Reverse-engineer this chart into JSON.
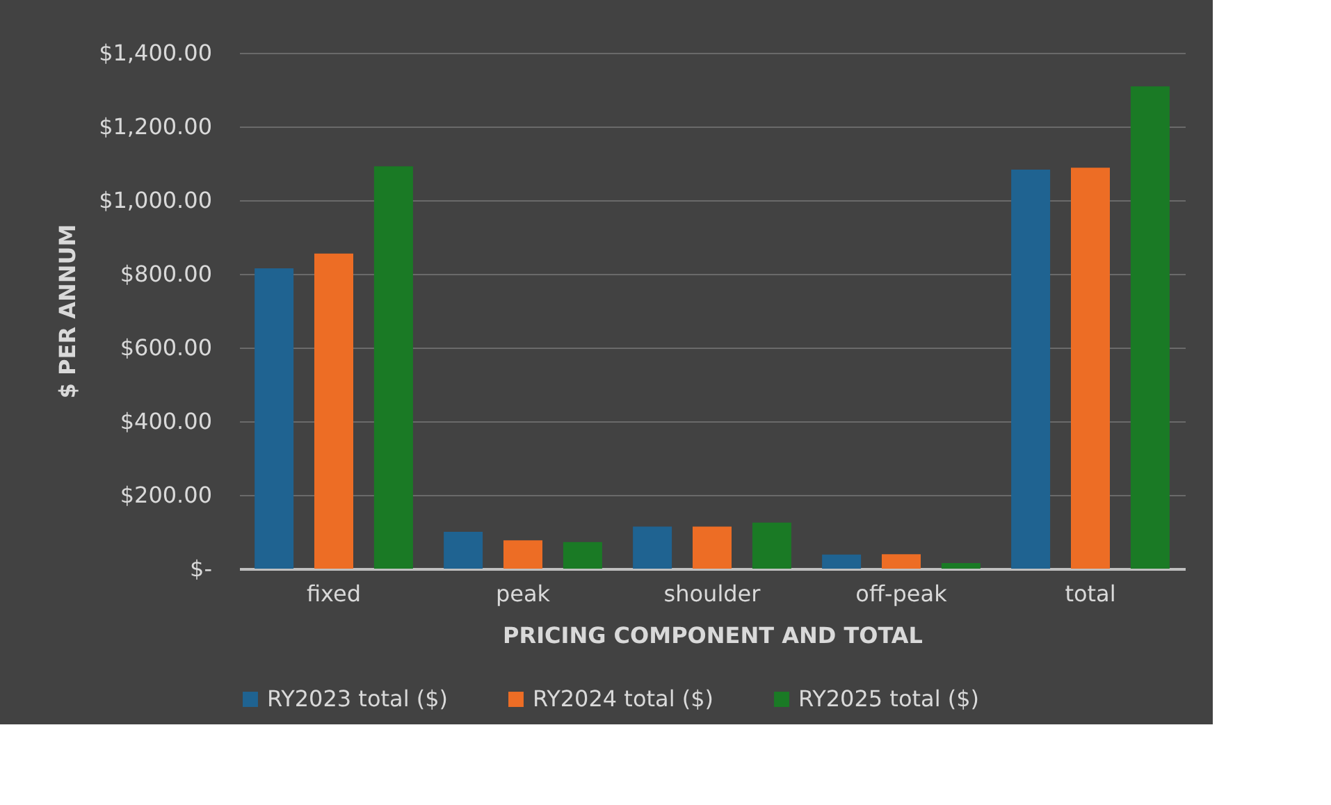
{
  "chart_data": {
    "type": "bar",
    "xlabel": "PRICING COMPONENT AND TOTAL",
    "ylabel": "$ PER ANNUM",
    "categories": [
      "fixed",
      "peak",
      "shoulder",
      "off-peak",
      "total"
    ],
    "series": [
      {
        "name": "RY2023 total ($)",
        "color": "#1f6391",
        "values": [
          815,
          100,
          114,
          38,
          1083
        ]
      },
      {
        "name": "RY2024 total ($)",
        "color": "#ed6d25",
        "values": [
          855,
          77,
          114,
          39,
          1088
        ]
      },
      {
        "name": "RY2025 total ($)",
        "color": "#1a7a25",
        "values": [
          1092,
          72,
          125,
          15,
          1309
        ]
      }
    ],
    "ylim": [
      0,
      1400
    ],
    "yticks": [
      {
        "value": 0,
        "label": "$-"
      },
      {
        "value": 200,
        "label": "$200.00"
      },
      {
        "value": 400,
        "label": "$400.00"
      },
      {
        "value": 600,
        "label": "$600.00"
      },
      {
        "value": 800,
        "label": "$800.00"
      },
      {
        "value": 1000,
        "label": "$1,000.00"
      },
      {
        "value": 1200,
        "label": "$1,200.00"
      },
      {
        "value": 1400,
        "label": "$1,400.00"
      }
    ],
    "grid": "y",
    "legend": "bottom"
  }
}
